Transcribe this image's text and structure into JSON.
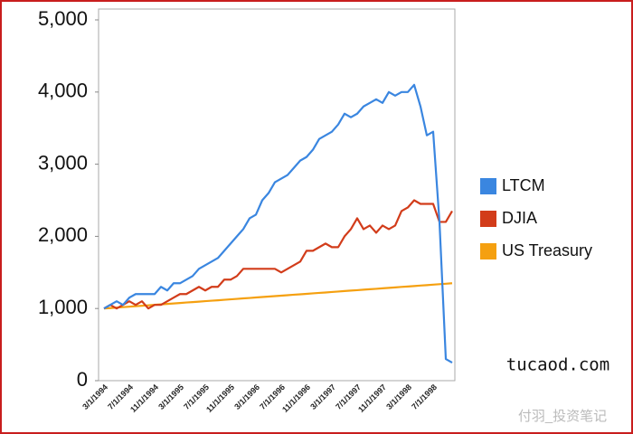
{
  "chart_data": {
    "type": "line",
    "categories": [
      "3/1/1994",
      null,
      null,
      null,
      "7/1/1994",
      null,
      null,
      null,
      "11/1/1994",
      null,
      null,
      null,
      "3/1/1995",
      null,
      null,
      null,
      "7/1/1995",
      null,
      null,
      null,
      "11/1/1995",
      null,
      null,
      null,
      "3/1/1996",
      null,
      null,
      null,
      "7/1/1996",
      null,
      null,
      null,
      "11/1/1996",
      null,
      null,
      null,
      "3/1/1997",
      null,
      null,
      null,
      "7/1/1997",
      null,
      null,
      null,
      "11/1/1997",
      null,
      null,
      null,
      "3/1/1998",
      null,
      null,
      null,
      "7/1/1998",
      null,
      null,
      null
    ],
    "series": [
      {
        "name": "LTCM",
        "color": "#3a86e0",
        "values": [
          1000,
          1050,
          1100,
          1050,
          1150,
          1200,
          1200,
          1200,
          1200,
          1300,
          1250,
          1350,
          1350,
          1400,
          1450,
          1550,
          1600,
          1650,
          1700,
          1800,
          1900,
          2000,
          2100,
          2250,
          2300,
          2500,
          2600,
          2750,
          2800,
          2850,
          2950,
          3050,
          3100,
          3200,
          3350,
          3400,
          3450,
          3550,
          3700,
          3650,
          3700,
          3800,
          3850,
          3900,
          3850,
          4000,
          3950,
          4000,
          4000,
          4100,
          3800,
          3400,
          3450,
          2200,
          300,
          250
        ]
      },
      {
        "name": "DJIA",
        "color": "#d23c1a",
        "values": [
          1000,
          1050,
          1000,
          1050,
          1100,
          1050,
          1100,
          1000,
          1050,
          1050,
          1100,
          1150,
          1200,
          1200,
          1250,
          1300,
          1250,
          1300,
          1300,
          1400,
          1400,
          1450,
          1550,
          1550,
          1550,
          1550,
          1550,
          1550,
          1500,
          1550,
          1600,
          1650,
          1800,
          1800,
          1850,
          1900,
          1850,
          1850,
          2000,
          2100,
          2250,
          2100,
          2150,
          2050,
          2150,
          2100,
          2150,
          2350,
          2400,
          2500,
          2450,
          2450,
          2450,
          2200,
          2200,
          2350
        ]
      },
      {
        "name": "US Treasury",
        "color": "#f5a010",
        "values": [
          1000,
          1006,
          1013,
          1019,
          1025,
          1032,
          1038,
          1044,
          1051,
          1057,
          1064,
          1070,
          1076,
          1083,
          1089,
          1095,
          1102,
          1108,
          1114,
          1121,
          1127,
          1133,
          1140,
          1146,
          1153,
          1159,
          1165,
          1172,
          1178,
          1184,
          1191,
          1197,
          1203,
          1210,
          1216,
          1222,
          1229,
          1235,
          1242,
          1248,
          1254,
          1261,
          1267,
          1273,
          1280,
          1286,
          1292,
          1299,
          1305,
          1311,
          1318,
          1324,
          1331,
          1337,
          1343,
          1350
        ]
      }
    ],
    "ylim": [
      0,
      5000
    ],
    "yticks": [
      0,
      {
        "value": 1000,
        "label": "1,000"
      },
      {
        "value": 2000,
        "label": "2,000"
      },
      {
        "value": 3000,
        "label": "3,000"
      },
      {
        "value": 4000,
        "label": "4,000"
      },
      {
        "value": 5000,
        "label": "5,000"
      }
    ],
    "grid": false,
    "legend": "right",
    "watermarks": [
      "tucaod.com",
      "付羽_投资笔记"
    ]
  }
}
